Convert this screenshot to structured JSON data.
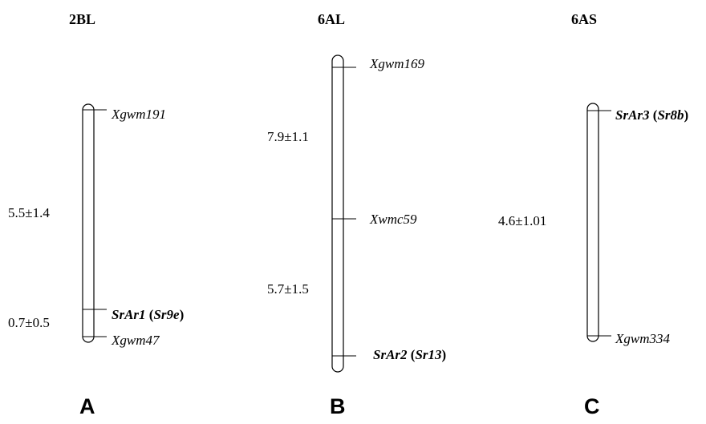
{
  "maps": [
    {
      "id": "A",
      "title": "2BL",
      "panel": "A",
      "loci": [
        {
          "label": "Xgwm191",
          "style": "italic"
        },
        {
          "gene": "SrAr1",
          "alias": "Sr9e",
          "style": "gene"
        },
        {
          "label": "Xgwm47",
          "style": "italic"
        }
      ],
      "distances": [
        "5.5±1.4",
        "0.7±0.5"
      ]
    },
    {
      "id": "B",
      "title": "6AL",
      "panel": "B",
      "loci": [
        {
          "label": "Xgwm169",
          "style": "italic"
        },
        {
          "label": "Xwmc59",
          "style": "italic"
        },
        {
          "gene": "SrAr2",
          "alias": "Sr13",
          "style": "gene"
        }
      ],
      "distances": [
        "7.9±1.1",
        "5.7±1.5"
      ]
    },
    {
      "id": "C",
      "title": "6AS",
      "panel": "C",
      "loci": [
        {
          "gene": "SrAr3",
          "alias": "Sr8b",
          "style": "gene"
        },
        {
          "label": "Xgwm334",
          "style": "italic"
        }
      ],
      "distances": [
        "4.6±1.01"
      ]
    }
  ]
}
